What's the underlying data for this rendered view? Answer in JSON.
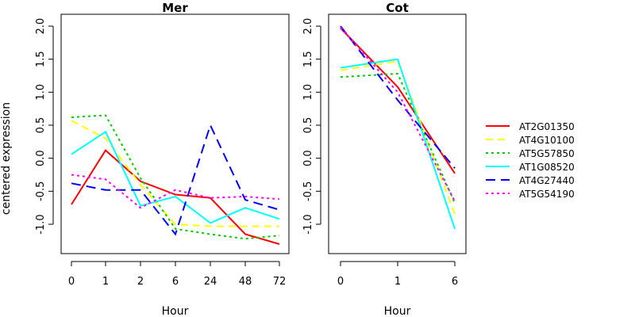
{
  "chart_data": [
    {
      "type": "line",
      "title": "Mer",
      "xlabel": "Hour",
      "ylabel": "centered expression",
      "categories": [
        "0",
        "1",
        "2",
        "6",
        "24",
        "48",
        "72"
      ],
      "ylim": [
        -1.4,
        2.1
      ],
      "yticks": [
        "-1.0",
        "-0.5",
        "0.0",
        "0.5",
        "1.0",
        "1.5",
        "2.0"
      ],
      "grid": false,
      "series": [
        {
          "name": "AT2G01350",
          "values": [
            -0.7,
            0.12,
            -0.35,
            -0.55,
            -0.6,
            -1.15,
            -1.3
          ]
        },
        {
          "name": "AT4G10100",
          "values": [
            0.57,
            0.3,
            -0.4,
            -1.0,
            -1.03,
            -1.03,
            -1.03
          ]
        },
        {
          "name": "AT5G57850",
          "values": [
            0.62,
            0.65,
            -0.3,
            -1.07,
            -1.15,
            -1.22,
            -1.17
          ]
        },
        {
          "name": "AT1G08520",
          "values": [
            0.06,
            0.4,
            -0.72,
            -0.58,
            -0.98,
            -0.75,
            -0.92
          ]
        },
        {
          "name": "AT4G27440",
          "values": [
            -0.38,
            -0.48,
            -0.48,
            -1.15,
            0.5,
            -0.63,
            -0.78
          ]
        },
        {
          "name": "AT5G54190",
          "values": [
            -0.25,
            -0.32,
            -0.75,
            -0.48,
            -0.6,
            -0.58,
            -0.62
          ]
        }
      ]
    },
    {
      "type": "line",
      "title": "Cot",
      "xlabel": "Hour",
      "categories": [
        "0",
        "1",
        "6"
      ],
      "ylim": [
        -1.4,
        2.1
      ],
      "yticks": [
        "-1.0",
        "-0.5",
        "0.0",
        "0.5",
        "1.0",
        "1.5",
        "2.0"
      ],
      "grid": false,
      "series": [
        {
          "name": "AT2G01350",
          "values": [
            1.97,
            1.08,
            -0.23
          ]
        },
        {
          "name": "AT4G10100",
          "values": [
            1.33,
            1.47,
            -0.85
          ]
        },
        {
          "name": "AT5G57850",
          "values": [
            1.23,
            1.28,
            -0.68
          ]
        },
        {
          "name": "AT1G08520",
          "values": [
            1.37,
            1.5,
            -1.07
          ]
        },
        {
          "name": "AT4G27440",
          "values": [
            2.0,
            0.88,
            -0.15
          ]
        },
        {
          "name": "AT5G54190",
          "values": [
            1.98,
            1.0,
            -0.65
          ]
        }
      ]
    }
  ],
  "legend": {
    "position": "right",
    "items": [
      {
        "label": "AT2G01350",
        "color": "#ff0000",
        "dash": "solid"
      },
      {
        "label": "AT4G10100",
        "color": "#ffff00",
        "dash": "dashed"
      },
      {
        "label": "AT5G57850",
        "color": "#00cc00",
        "dash": "dotted"
      },
      {
        "label": "AT1G08520",
        "color": "#00ffff",
        "dash": "solid"
      },
      {
        "label": "AT4G27440",
        "color": "#0000ff",
        "dash": "longdash"
      },
      {
        "label": "AT5G54190",
        "color": "#ff00ff",
        "dash": "dotted"
      }
    ]
  }
}
